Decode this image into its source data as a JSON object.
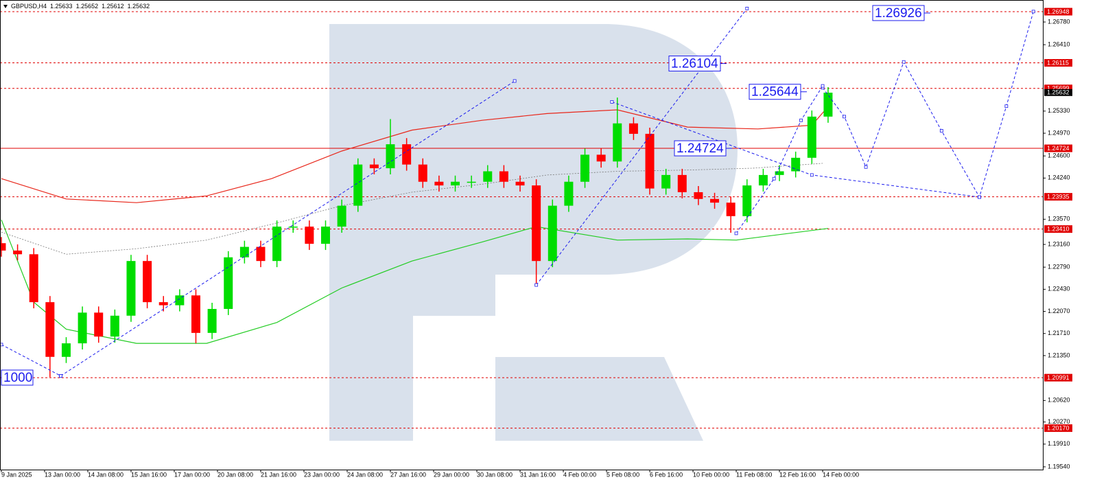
{
  "chart_data": {
    "type": "candlestick",
    "symbol": "GBPUSD,H4",
    "header_values": [
      1.25633,
      1.25652,
      1.25612,
      1.25632
    ],
    "up_color": "#00dd00",
    "down_color": "#ff0000",
    "x": [
      0,
      3,
      6,
      9,
      12,
      15,
      18,
      21,
      24,
      27,
      30,
      33,
      36,
      39,
      42,
      45,
      48,
      51,
      54,
      57,
      60,
      63,
      66,
      69,
      72,
      75,
      78,
      81,
      84,
      87,
      90,
      93,
      96,
      99,
      102,
      105,
      108,
      111,
      114,
      117,
      120,
      123,
      126,
      129,
      132,
      135,
      138,
      141,
      144,
      147,
      150,
      153
    ],
    "open": [
      1.2318,
      1.2306,
      1.23,
      1.2222,
      1.2133,
      1.2155,
      1.2205,
      1.2166,
      1.22,
      1.2289,
      1.2222,
      1.2217,
      1.2233,
      1.2172,
      1.2211,
      1.2295,
      1.2312,
      1.2289,
      1.2345,
      1.2345,
      1.2317,
      1.2345,
      1.2379,
      1.2446,
      1.244,
      1.2479,
      1.2446,
      1.2418,
      1.2412,
      1.2418,
      1.2418,
      1.2435,
      1.2418,
      1.2412,
      1.2289,
      1.2379,
      1.2418,
      1.2462,
      1.2451,
      1.2513,
      1.2496,
      1.2407,
      1.2429,
      1.2401,
      1.239,
      1.2384,
      1.2362,
      1.2412,
      1.2429,
      1.2435,
      1.2457,
      1.2524
    ],
    "high": [
      1.2328,
      1.2316,
      1.231,
      1.2232,
      1.2165,
      1.2215,
      1.2215,
      1.221,
      1.2299,
      1.2299,
      1.2232,
      1.2243,
      1.2243,
      1.2221,
      1.2305,
      1.2322,
      1.2322,
      1.2355,
      1.2355,
      1.2355,
      1.2355,
      1.2389,
      1.2456,
      1.2456,
      1.252,
      1.2489,
      1.2456,
      1.2428,
      1.2428,
      1.2428,
      1.2445,
      1.2445,
      1.2428,
      1.2422,
      1.2389,
      1.2428,
      1.2472,
      1.2472,
      1.2555,
      1.2523,
      1.2506,
      1.2439,
      1.2439,
      1.2411,
      1.24,
      1.2394,
      1.2422,
      1.2439,
      1.2445,
      1.2467,
      1.2534,
      1.2572
    ],
    "low": [
      1.2296,
      1.229,
      1.2212,
      1.21,
      1.2123,
      1.2145,
      1.2156,
      1.2156,
      1.219,
      1.2212,
      1.2207,
      1.2207,
      1.2155,
      1.2162,
      1.2201,
      1.2285,
      1.2279,
      1.2279,
      1.2335,
      1.2307,
      1.2307,
      1.2335,
      1.2369,
      1.243,
      1.243,
      1.2436,
      1.2408,
      1.2402,
      1.2402,
      1.2408,
      1.2408,
      1.2408,
      1.2402,
      1.225,
      1.2279,
      1.2369,
      1.2408,
      1.2441,
      1.2441,
      1.2486,
      1.2397,
      1.2397,
      1.2391,
      1.238,
      1.2374,
      1.2335,
      1.2352,
      1.2402,
      1.2419,
      1.2425,
      1.2447,
      1.2514
    ],
    "close": [
      1.2306,
      1.23,
      1.2222,
      1.2133,
      1.2155,
      1.2205,
      1.2166,
      1.22,
      1.2289,
      1.2222,
      1.2217,
      1.2233,
      1.2172,
      1.2211,
      1.2295,
      1.2312,
      1.2289,
      1.2345,
      1.2345,
      1.2317,
      1.2345,
      1.2379,
      1.2446,
      1.244,
      1.2479,
      1.2446,
      1.2418,
      1.2412,
      1.2418,
      1.2418,
      1.2435,
      1.2418,
      1.2412,
      1.2289,
      1.2379,
      1.2418,
      1.2462,
      1.2451,
      1.2513,
      1.2496,
      1.2407,
      1.2429,
      1.2401,
      1.239,
      1.2384,
      1.2362,
      1.2412,
      1.2429,
      1.2435,
      1.2457,
      1.2524,
      1.2563
    ],
    "xlim": [
      -0.25,
      192.75
    ],
    "ylim": [
      1.19495,
      1.27138
    ],
    "xticks": [
      {
        "value": 0,
        "label": "9 Jan 2025"
      },
      {
        "value": 8,
        "label": "13 Jan 00:00"
      },
      {
        "value": 16,
        "label": "14 Jan 08:00"
      },
      {
        "value": 24,
        "label": "15 Jan 16:00"
      },
      {
        "value": 32,
        "label": "17 Jan 00:00"
      },
      {
        "value": 40,
        "label": "20 Jan 08:00"
      },
      {
        "value": 48,
        "label": "21 Jan 16:00"
      },
      {
        "value": 56,
        "label": "23 Jan 00:00"
      },
      {
        "value": 64,
        "label": "24 Jan 08:00"
      },
      {
        "value": 72,
        "label": "27 Jan 16:00"
      },
      {
        "value": 80,
        "label": "29 Jan 00:00"
      },
      {
        "value": 88,
        "label": "30 Jan 08:00"
      },
      {
        "value": 96,
        "label": "31 Jan 16:00"
      },
      {
        "value": 104,
        "label": "4 Feb 00:00"
      },
      {
        "value": 112,
        "label": "5 Feb 08:00"
      },
      {
        "value": 120,
        "label": "6 Feb 16:00"
      },
      {
        "value": 128,
        "label": "10 Feb 00:00"
      },
      {
        "value": 136,
        "label": "11 Feb 08:00"
      },
      {
        "value": 144,
        "label": "12 Feb 16:00"
      },
      {
        "value": 152,
        "label": "14 Feb 00:00"
      }
    ],
    "yticks": [
      {
        "value": 1.2678,
        "label": "1.26780"
      },
      {
        "value": 1.2641,
        "label": "1.26410"
      },
      {
        "value": 1.2533,
        "label": "1.25330"
      },
      {
        "value": 1.2497,
        "label": "1.24970"
      },
      {
        "value": 1.246,
        "label": "1.24600"
      },
      {
        "value": 1.2424,
        "label": "1.24240"
      },
      {
        "value": 1.2357,
        "label": "1.23570"
      },
      {
        "value": 1.2316,
        "label": "1.23160"
      },
      {
        "value": 1.2279,
        "label": "1.22790"
      },
      {
        "value": 1.2243,
        "label": "1.22430"
      },
      {
        "value": 1.2207,
        "label": "1.22070"
      },
      {
        "value": 1.2171,
        "label": "1.21710"
      },
      {
        "value": 1.2135,
        "label": "1.21350"
      },
      {
        "value": 1.2062,
        "label": "1.20620"
      },
      {
        "value": 1.2027,
        "label": "1.20270"
      },
      {
        "value": 1.1991,
        "label": "1.19910"
      },
      {
        "value": 1.1954,
        "label": "1.19540"
      }
    ],
    "moving_averages": [
      {
        "color": "#e8261a",
        "style": "solid",
        "x": [
          0,
          12,
          25,
          38,
          50,
          63,
          76,
          89,
          101,
          114,
          127,
          140,
          150,
          153
        ],
        "values": [
          1.2423,
          1.239,
          1.2384,
          1.2395,
          1.2423,
          1.2468,
          1.2502,
          1.2518,
          1.2529,
          1.2535,
          1.2507,
          1.2504,
          1.251,
          1.254
        ]
      },
      {
        "color": "#22cc22",
        "style": "solid",
        "x": [
          0,
          6,
          12,
          25,
          38,
          51,
          63,
          76,
          89,
          99,
          114,
          127,
          136,
          153
        ],
        "values": [
          1.2356,
          1.2222,
          1.2178,
          1.2155,
          1.2155,
          1.2189,
          1.2245,
          1.2289,
          1.232,
          1.2345,
          1.2323,
          1.2325,
          1.2323,
          1.2342
        ]
      },
      {
        "color": "#777777",
        "style": "dotted",
        "x": [
          0,
          12,
          25,
          38,
          51,
          63,
          76,
          89,
          101,
          114,
          127,
          139,
          152
        ],
        "values": [
          1.2336,
          1.23,
          1.2309,
          1.2323,
          1.2351,
          1.2379,
          1.2401,
          1.2414,
          1.2429,
          1.2435,
          1.2437,
          1.244,
          1.2448
        ]
      }
    ],
    "level_color": "#e00000",
    "levels": [
      {
        "value": 1.26948,
        "style": "dashed"
      },
      {
        "value": 1.26115,
        "style": "dashed"
      },
      {
        "value": 1.25699,
        "style": "dashed"
      },
      {
        "value": 1.24724,
        "style": "solid"
      },
      {
        "value": 1.23935,
        "style": "dashed"
      },
      {
        "value": 1.2341,
        "label": "1.23410",
        "style": "dashed"
      },
      {
        "value": 1.20991,
        "style": "dashed"
      },
      {
        "value": 1.2017,
        "label": "1.20170",
        "style": "dashed"
      }
    ],
    "current_price": 1.25632,
    "forecast": {
      "color": "#1a1aee",
      "lines": [
        {
          "x": [
            152,
            156,
            160,
            167,
            174,
            181,
            186,
            191
          ],
          "values": [
            1.2571,
            1.2524,
            1.2442,
            1.2613,
            1.2501,
            1.2393,
            1.2541,
            1.2695
          ]
        },
        {
          "x": [
            99,
            138
          ],
          "values": [
            1.225,
            1.27
          ]
        },
        {
          "x": [
            0,
            11
          ],
          "values": [
            1.2153,
            1.2102
          ]
        },
        {
          "x": [
            11,
            95
          ],
          "values": [
            1.2102,
            1.2582
          ]
        },
        {
          "x": [
            113,
            150,
            181
          ],
          "values": [
            1.2548,
            1.2429,
            1.2393
          ]
        },
        {
          "x": [
            136,
            143,
            148,
            152
          ],
          "values": [
            1.2334,
            1.2423,
            1.2518,
            1.2574
          ]
        }
      ],
      "labels": [
        1.26926,
        1.26104,
        1.25644,
        1.24724
      ],
      "edge_label": "1000"
    }
  }
}
